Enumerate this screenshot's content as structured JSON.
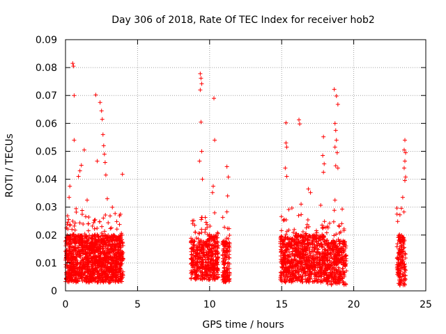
{
  "chart_data": {
    "type": "scatter",
    "title": "Day 306 of 2018, Rate Of TEC Index for receiver hob2",
    "xlabel": "GPS time / hours",
    "ylabel": "ROTI / TECUs",
    "xlim": [
      0,
      25
    ],
    "ylim": [
      0,
      0.09
    ],
    "x_ticks": [
      0,
      5,
      10,
      15,
      20,
      25
    ],
    "x_tick_labels": [
      "0",
      "5",
      "10",
      "15",
      "20",
      "25"
    ],
    "y_ticks": [
      0,
      0.01,
      0.02,
      0.03,
      0.04,
      0.05,
      0.06,
      0.07,
      0.08,
      0.09
    ],
    "y_tick_labels": [
      "0",
      "0.01",
      "0.02",
      "0.03",
      "0.04",
      "0.05",
      "0.06",
      "0.07",
      "0.08",
      "0.09"
    ],
    "grid": true,
    "marker": "+",
    "colors": {
      "marker": "#ff0000",
      "grid": "#a0a0a0",
      "axis": "#000000"
    },
    "clusters": [
      {
        "x_range": [
          0.0,
          4.0
        ],
        "y_base_range": [
          0.003,
          0.02
        ],
        "count": 1400
      },
      {
        "x_range": [
          8.7,
          9.9
        ],
        "y_base_range": [
          0.004,
          0.018
        ],
        "count": 280
      },
      {
        "x_range": [
          9.9,
          10.6
        ],
        "y_base_range": [
          0.004,
          0.02
        ],
        "count": 200
      },
      {
        "x_range": [
          10.9,
          11.4
        ],
        "y_base_range": [
          0.003,
          0.018
        ],
        "count": 140
      },
      {
        "x_range": [
          14.9,
          16.4
        ],
        "y_base_range": [
          0.003,
          0.02
        ],
        "count": 420
      },
      {
        "x_range": [
          16.4,
          18.2
        ],
        "y_base_range": [
          0.003,
          0.02
        ],
        "count": 460
      },
      {
        "x_range": [
          18.2,
          19.5
        ],
        "y_base_range": [
          0.002,
          0.018
        ],
        "count": 320
      },
      {
        "x_range": [
          23.0,
          23.6
        ],
        "y_base_range": [
          0.002,
          0.02
        ],
        "count": 160
      }
    ],
    "spikes": [
      [
        0.25,
        0.0335
      ],
      [
        0.3,
        0.0375
      ],
      [
        0.45,
        0.022
      ],
      [
        0.5,
        0.0815
      ],
      [
        0.55,
        0.0805
      ],
      [
        0.6,
        0.07
      ],
      [
        0.6,
        0.054
      ],
      [
        0.9,
        0.041
      ],
      [
        1.0,
        0.043
      ],
      [
        1.1,
        0.045
      ],
      [
        1.3,
        0.0505
      ],
      [
        1.5,
        0.0325
      ],
      [
        2.1,
        0.0702
      ],
      [
        2.4,
        0.0675
      ],
      [
        2.5,
        0.0645
      ],
      [
        2.55,
        0.0615
      ],
      [
        2.6,
        0.056
      ],
      [
        2.65,
        0.052
      ],
      [
        2.7,
        0.049
      ],
      [
        2.75,
        0.046
      ],
      [
        2.8,
        0.0415
      ],
      [
        2.9,
        0.033
      ],
      [
        2.2,
        0.0465
      ],
      [
        3.95,
        0.0418
      ],
      [
        3.7,
        0.0185
      ],
      [
        9.35,
        0.0778
      ],
      [
        9.4,
        0.0762
      ],
      [
        9.45,
        0.0742
      ],
      [
        9.35,
        0.072
      ],
      [
        9.4,
        0.0605
      ],
      [
        9.45,
        0.05
      ],
      [
        9.3,
        0.0465
      ],
      [
        9.5,
        0.04
      ],
      [
        10.3,
        0.069
      ],
      [
        10.35,
        0.054
      ],
      [
        10.25,
        0.0375
      ],
      [
        10.2,
        0.0352
      ],
      [
        11.2,
        0.0445
      ],
      [
        11.3,
        0.0408
      ],
      [
        11.25,
        0.034
      ],
      [
        11.2,
        0.0283
      ],
      [
        15.3,
        0.0602
      ],
      [
        15.3,
        0.053
      ],
      [
        15.35,
        0.0515
      ],
      [
        15.25,
        0.044
      ],
      [
        15.35,
        0.041
      ],
      [
        16.2,
        0.0613
      ],
      [
        16.25,
        0.0598
      ],
      [
        16.85,
        0.0365
      ],
      [
        17.0,
        0.0352
      ],
      [
        17.9,
        0.0552
      ],
      [
        17.85,
        0.0485
      ],
      [
        17.95,
        0.0455
      ],
      [
        17.9,
        0.0425
      ],
      [
        18.65,
        0.0722
      ],
      [
        18.8,
        0.0698
      ],
      [
        18.9,
        0.0668
      ],
      [
        18.7,
        0.06
      ],
      [
        18.75,
        0.0575
      ],
      [
        18.8,
        0.054
      ],
      [
        18.7,
        0.0515
      ],
      [
        18.85,
        0.0495
      ],
      [
        18.75,
        0.0448
      ],
      [
        18.9,
        0.044
      ],
      [
        18.7,
        0.0325
      ],
      [
        19.2,
        0.0293
      ],
      [
        23.55,
        0.054
      ],
      [
        23.5,
        0.0505
      ],
      [
        23.6,
        0.0495
      ],
      [
        23.55,
        0.0465
      ],
      [
        23.5,
        0.044
      ],
      [
        23.6,
        0.0408
      ],
      [
        23.55,
        0.0395
      ],
      [
        23.4,
        0.0335
      ]
    ]
  }
}
